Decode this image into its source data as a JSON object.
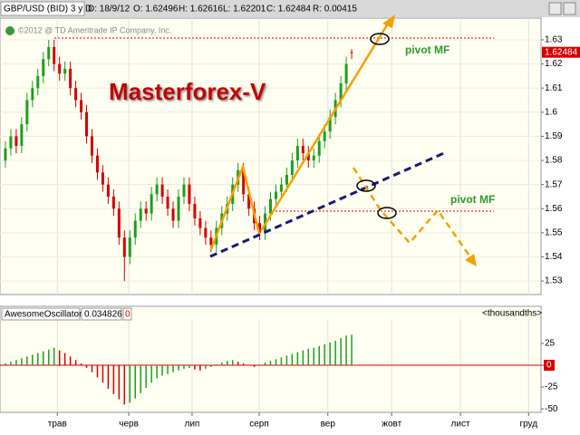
{
  "header": {
    "symbol": "GBP/USD (BID) 3 y D",
    "date": "D: 18/9/12",
    "open": "O: 1.62496",
    "high": "H: 1.62616",
    "low": "L: 1.62201",
    "close": "C: 1.62484",
    "range": "R: 0.00415"
  },
  "chart_data": [
    {
      "type": "candlestick",
      "annotations": {
        "copyright": "©2012 @ TD Ameritrade IP Company, Inc.",
        "brand": "Masterforex-V",
        "pivot_upper": "pivot MF",
        "pivot_lower": "pivot MF"
      },
      "open": [
        1.58,
        1.585,
        1.59,
        1.586,
        1.595,
        1.605,
        1.61,
        1.615,
        1.622,
        1.627,
        1.62,
        1.616,
        1.618,
        1.61,
        1.605,
        1.6,
        1.59,
        1.582,
        1.575,
        1.57,
        1.565,
        1.56,
        1.548,
        1.54,
        1.548,
        1.555,
        1.56,
        1.558,
        1.566,
        1.57,
        1.565,
        1.56,
        1.555,
        1.565,
        1.57,
        1.562,
        1.556,
        1.552,
        1.548,
        1.545,
        1.552,
        1.558,
        1.562,
        1.57,
        1.576,
        1.566,
        1.56,
        1.554,
        1.55,
        1.558,
        1.564,
        1.567,
        1.57,
        1.574,
        1.58,
        1.586,
        1.583,
        1.58,
        1.582,
        1.588,
        1.592,
        1.598,
        1.605,
        1.612,
        1.62496
      ],
      "high": [
        1.588,
        1.593,
        1.593,
        1.598,
        1.608,
        1.613,
        1.618,
        1.625,
        1.63,
        1.63,
        1.623,
        1.621,
        1.621,
        1.613,
        1.608,
        1.603,
        1.593,
        1.585,
        1.578,
        1.573,
        1.568,
        1.563,
        1.551,
        1.551,
        1.558,
        1.563,
        1.563,
        1.569,
        1.573,
        1.573,
        1.568,
        1.563,
        1.568,
        1.573,
        1.573,
        1.565,
        1.559,
        1.555,
        1.551,
        1.555,
        1.561,
        1.565,
        1.573,
        1.579,
        1.579,
        1.569,
        1.563,
        1.557,
        1.561,
        1.567,
        1.57,
        1.573,
        1.577,
        1.583,
        1.589,
        1.589,
        1.586,
        1.585,
        1.591,
        1.595,
        1.601,
        1.608,
        1.615,
        1.623,
        1.62616
      ],
      "low": [
        1.577,
        1.582,
        1.583,
        1.583,
        1.592,
        1.602,
        1.607,
        1.612,
        1.619,
        1.617,
        1.613,
        1.613,
        1.607,
        1.602,
        1.597,
        1.587,
        1.579,
        1.572,
        1.567,
        1.562,
        1.557,
        1.545,
        1.53,
        1.537,
        1.545,
        1.552,
        1.555,
        1.555,
        1.563,
        1.562,
        1.557,
        1.552,
        1.552,
        1.562,
        1.559,
        1.553,
        1.549,
        1.545,
        1.542,
        1.542,
        1.549,
        1.555,
        1.559,
        1.567,
        1.563,
        1.557,
        1.551,
        1.547,
        1.547,
        1.555,
        1.561,
        1.564,
        1.567,
        1.571,
        1.577,
        1.58,
        1.577,
        1.577,
        1.579,
        1.585,
        1.589,
        1.595,
        1.602,
        1.609,
        1.62201
      ],
      "close": [
        1.585,
        1.59,
        1.586,
        1.595,
        1.605,
        1.61,
        1.615,
        1.622,
        1.627,
        1.62,
        1.616,
        1.618,
        1.61,
        1.605,
        1.6,
        1.59,
        1.582,
        1.575,
        1.57,
        1.565,
        1.56,
        1.548,
        1.54,
        1.548,
        1.555,
        1.56,
        1.558,
        1.566,
        1.57,
        1.565,
        1.56,
        1.555,
        1.565,
        1.57,
        1.562,
        1.556,
        1.552,
        1.548,
        1.545,
        1.552,
        1.558,
        1.562,
        1.57,
        1.576,
        1.566,
        1.56,
        1.554,
        1.55,
        1.558,
        1.564,
        1.567,
        1.57,
        1.574,
        1.58,
        1.586,
        1.583,
        1.58,
        1.582,
        1.588,
        1.592,
        1.598,
        1.605,
        1.612,
        1.62,
        1.62484
      ],
      "up_color": "#1e9e1e",
      "down_color": "#d40000",
      "last_price": 1.62484,
      "xlim": [
        -1,
        99
      ],
      "xticks": [
        {
          "value": 9.6,
          "label": "трав"
        },
        {
          "value": 22.8,
          "label": "черв"
        },
        {
          "value": 34.5,
          "label": "лип"
        },
        {
          "value": 46.9,
          "label": "серп"
        },
        {
          "value": 59.6,
          "label": "вер"
        },
        {
          "value": 71.4,
          "label": "жовт"
        },
        {
          "value": 84.1,
          "label": "лист"
        },
        {
          "value": 96.7,
          "label": "груд"
        }
      ],
      "ylim": [
        1.5244,
        1.639
      ],
      "yticks": [
        1.53,
        1.54,
        1.55,
        1.56,
        1.57,
        1.58,
        1.59,
        1.6,
        1.61,
        1.62,
        1.63
      ],
      "grid": true
    },
    {
      "type": "histogram-oscillator",
      "name": "AwesomeOscillator",
      "current": "0.034826",
      "zero_label": "0",
      "units": "<thousandths>",
      "values": [
        2,
        4,
        6,
        8,
        10,
        12,
        14,
        16,
        18,
        20,
        17,
        14,
        10,
        6,
        2,
        -3,
        -8,
        -14,
        -20,
        -27,
        -33,
        -39,
        -45,
        -43,
        -38,
        -32,
        -26,
        -20,
        -15,
        -12,
        -10,
        -8,
        -6,
        -4,
        -3,
        -5,
        -6,
        -4,
        -2,
        1,
        3,
        5,
        6,
        4,
        2,
        0,
        -2,
        1,
        3,
        5,
        7,
        9,
        11,
        13,
        15,
        17,
        19,
        20,
        22,
        24,
        26,
        28,
        31,
        34,
        35
      ],
      "up_color": "#1e9e1e",
      "down_color": "#d40000",
      "xlim": [
        -1,
        99
      ],
      "ylim": [
        -54,
        53
      ],
      "yticks": [
        25,
        0,
        -25,
        -50
      ],
      "zero_color": "#d40000"
    }
  ]
}
